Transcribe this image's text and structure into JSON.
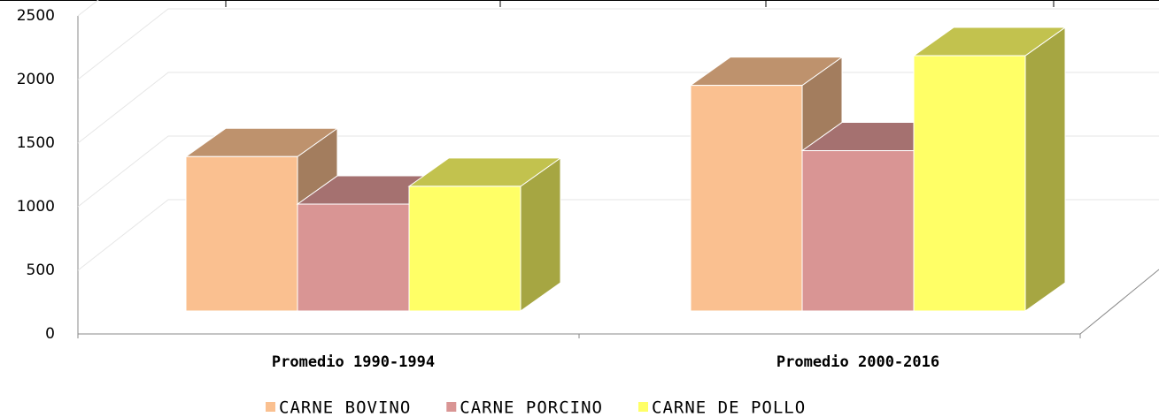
{
  "chart_data": {
    "type": "bar3d",
    "categories": [
      "Promedio 1990-1994",
      "Promedio 2000-2016"
    ],
    "series": [
      {
        "name": "CARNE BOVINO",
        "color": "#fac090",
        "values": [
          1300,
          1900
        ]
      },
      {
        "name": "CARNE PORCINO",
        "color": "#d99594",
        "values": [
          900,
          1350
        ]
      },
      {
        "name": "CARNE DE POLLO",
        "color": "#ffff66",
        "values": [
          1050,
          2150
        ]
      }
    ],
    "ylim": [
      0,
      2500
    ],
    "yticks": [
      0,
      500,
      1000,
      1500,
      2000,
      2500
    ],
    "grid": true,
    "legend": "bottom"
  }
}
